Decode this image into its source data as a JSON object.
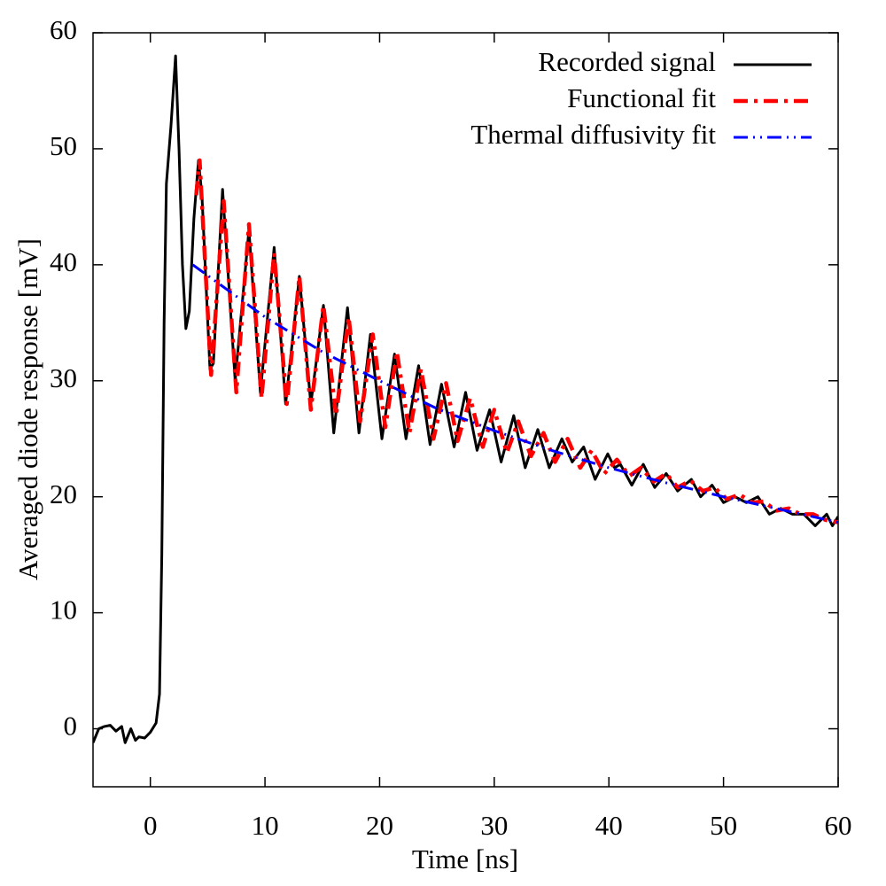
{
  "chart_data": {
    "type": "line",
    "xlabel": "Time [ns]",
    "ylabel": "Averaged diode response [mV]",
    "xlim": [
      -5,
      60
    ],
    "ylim": [
      -5,
      60
    ],
    "xticks": [
      0,
      10,
      20,
      30,
      40,
      50,
      60
    ],
    "yticks": [
      0,
      10,
      20,
      30,
      40,
      50,
      60
    ],
    "legend": "upper right",
    "series": [
      {
        "name": "Recorded signal",
        "color": "#000000",
        "dash": "solid",
        "x": [
          -5,
          -4.5,
          -4,
          -3.5,
          -3,
          -2.5,
          -2.2,
          -1.7,
          -1.3,
          -1,
          -0.5,
          0,
          0.5,
          0.8,
          1,
          1.2,
          1.4,
          1.8,
          2.2,
          2.5,
          2.8,
          3.1,
          3.4,
          3.8,
          4.2,
          4.5,
          5.2,
          5.5,
          6.3,
          7.4,
          8.6,
          9.6,
          10.8,
          11.8,
          13,
          14,
          15.1,
          16,
          17.2,
          18.2,
          19.2,
          20.2,
          21.3,
          22.3,
          23.4,
          24.4,
          25.4,
          26.5,
          27.5,
          28.5,
          29.6,
          30.6,
          31.7,
          32.7,
          33.8,
          34.8,
          35.9,
          36.8,
          37.8,
          38.8,
          39.9,
          40.5,
          41,
          42,
          43,
          44,
          45,
          46,
          47.2,
          48,
          49,
          50,
          51,
          52,
          53,
          54,
          55,
          56,
          57,
          58,
          59,
          59.5,
          60
        ],
        "values": [
          -1.2,
          0,
          0.2,
          0.3,
          -0.2,
          0.2,
          -1.2,
          0,
          -1,
          -0.7,
          -0.8,
          -0.3,
          0.5,
          3,
          15,
          35,
          47,
          52,
          58,
          50,
          40,
          34.5,
          36,
          44,
          49,
          46,
          31,
          31.5,
          46.5,
          30,
          43,
          29,
          41.5,
          28,
          39,
          28,
          36.5,
          25.5,
          36.3,
          25.5,
          34,
          25,
          32.3,
          25,
          31.3,
          24.5,
          29.7,
          24.3,
          29,
          24,
          27.5,
          23,
          27,
          22.5,
          25.8,
          22.5,
          25,
          23,
          24.3,
          21.5,
          23.7,
          22.5,
          22.8,
          21,
          22.8,
          20.8,
          22,
          20.5,
          21.5,
          20,
          21,
          19.5,
          20,
          19.5,
          20,
          18.5,
          19,
          18.5,
          18.5,
          17.5,
          18.5,
          17.5,
          18.3
        ]
      },
      {
        "name": "Functional fit",
        "color": "#ff0000",
        "dash": "dash-dot",
        "x": [
          4,
          4.3,
          5.3,
          6.4,
          7.5,
          8.6,
          9.7,
          10.8,
          11.9,
          13,
          14,
          15.1,
          16.2,
          17.3,
          18.3,
          19.4,
          20.5,
          21.5,
          22.6,
          23.6,
          24.7,
          25.8,
          26.8,
          27.9,
          29,
          30,
          31.1,
          32.1,
          33.2,
          34.3,
          35.3,
          36.4,
          37.5,
          38.5,
          39.6,
          40.7,
          41.8,
          42.8,
          43.9,
          45,
          46,
          47.1,
          48.2,
          49.2,
          50.3,
          51.4,
          52.5,
          53.5,
          54.6,
          55.7,
          56.7,
          57.8,
          58.9,
          60
        ],
        "values": [
          46,
          49,
          30.5,
          45.5,
          29,
          43.5,
          28.5,
          41,
          28,
          39,
          27.5,
          36.5,
          27,
          35.5,
          26.5,
          34,
          26,
          32.5,
          25.5,
          31,
          25,
          29.8,
          24.8,
          28.5,
          24.3,
          27.5,
          23.8,
          26.5,
          23.5,
          25.5,
          23,
          25,
          22.5,
          24,
          22,
          23.2,
          21.8,
          22.5,
          21.3,
          22,
          20.8,
          21.4,
          20.5,
          20.8,
          19.8,
          20.2,
          19.5,
          19.6,
          18.8,
          19,
          18.5,
          18.5,
          18,
          17.8
        ]
      },
      {
        "name": "Thermal diffusivity fit",
        "color": "#0000ff",
        "dash": "dash-dot-dot",
        "x": [
          3.7,
          10,
          15,
          20,
          25,
          30,
          35,
          40,
          45,
          50,
          55,
          60
        ],
        "values": [
          40,
          35.5,
          32.5,
          30,
          27.6,
          25.7,
          24,
          22.5,
          21.2,
          20,
          18.9,
          17.8
        ]
      }
    ]
  }
}
